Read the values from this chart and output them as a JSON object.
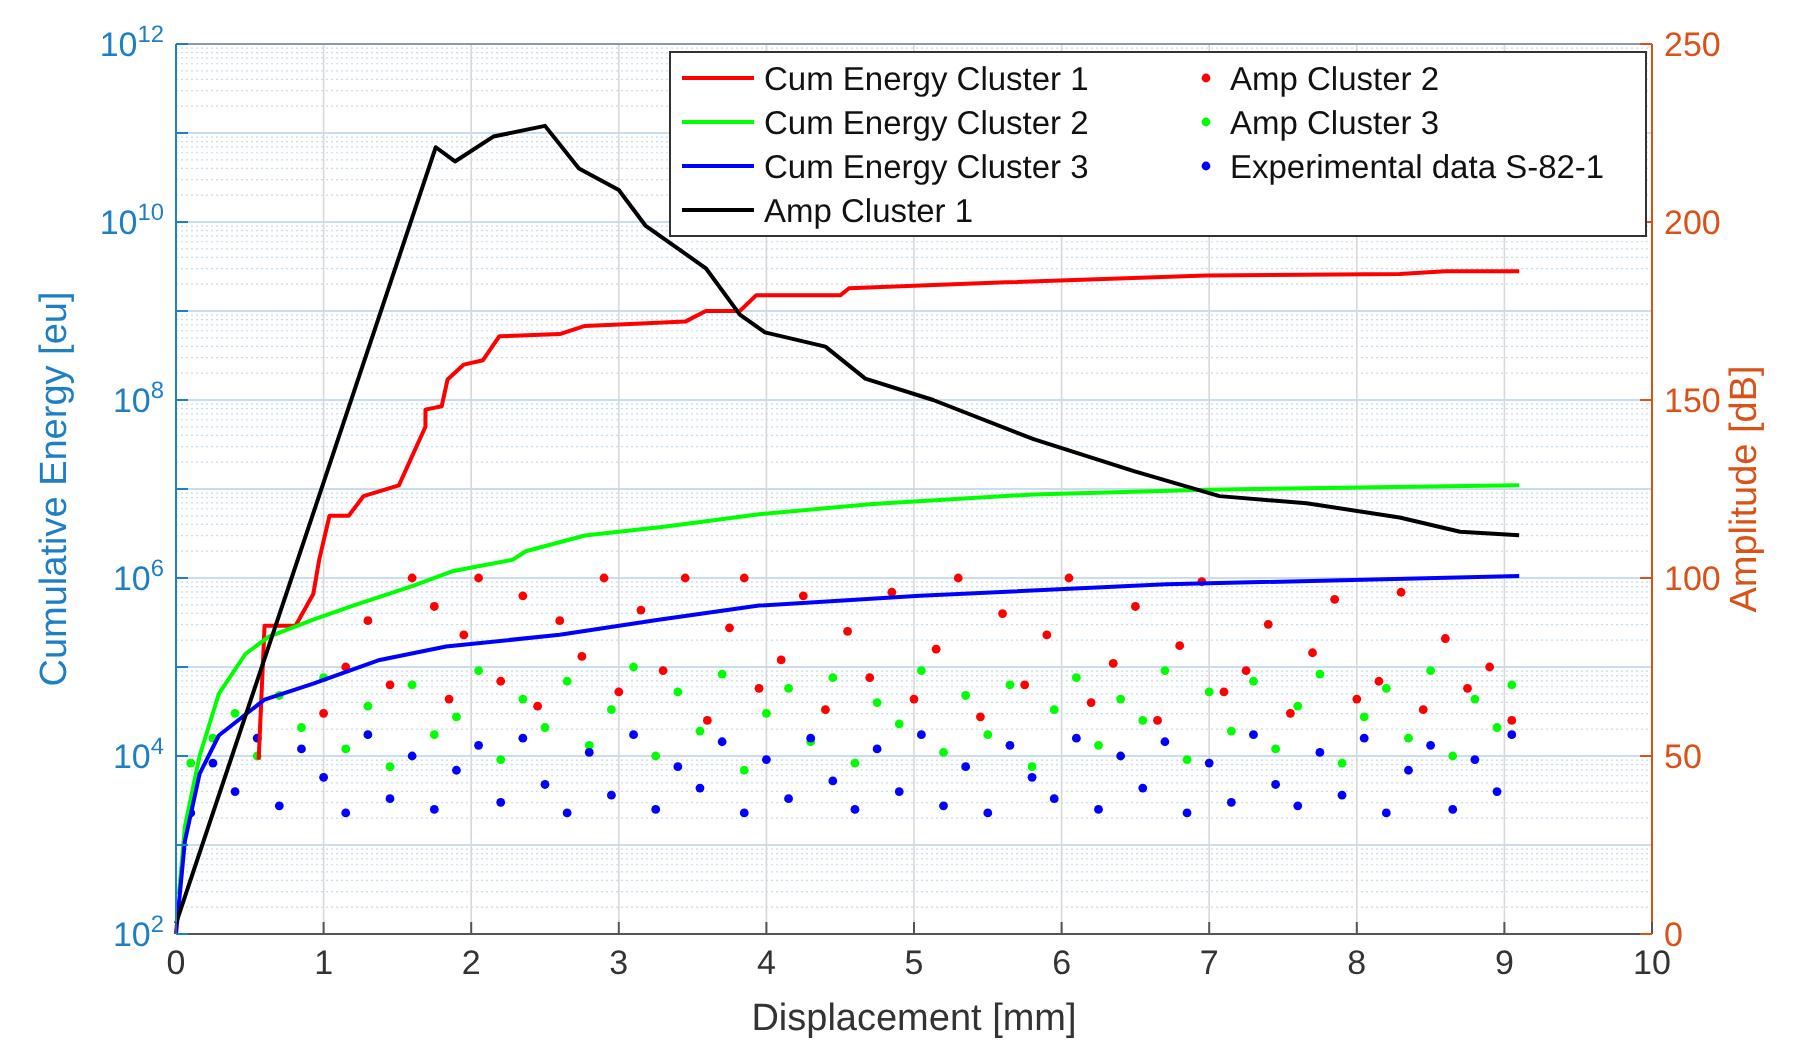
{
  "chart_data": {
    "type": "line",
    "xlabel": "Displacement [mm]",
    "ylabel": "Cumulative Energy [eu]",
    "y2label": "Amplitude [dB]",
    "xlim": [
      0,
      10
    ],
    "xticks": [
      0,
      1,
      2,
      3,
      4,
      5,
      6,
      7,
      8,
      9,
      10
    ],
    "ylim": [
      100,
      1000000000000
    ],
    "yticks": [
      {
        "value": 100,
        "label": "10$^{2}$"
      },
      {
        "value": 1000,
        "label": null
      },
      {
        "value": 10000,
        "label": "10$^{4}$"
      },
      {
        "value": 100000,
        "label": null
      },
      {
        "value": 1000000,
        "label": "10$^{6}$"
      },
      {
        "value": 10000000,
        "label": null
      },
      {
        "value": 100000000,
        "label": "10$^{8}$"
      },
      {
        "value": 1000000000,
        "label": null
      },
      {
        "value": 10000000000,
        "label": "10$^{10}$"
      },
      {
        "value": 100000000000,
        "label": null
      },
      {
        "value": 1000000000000,
        "label": "10$^{12}$"
      }
    ],
    "y2lim": [
      0,
      250
    ],
    "y2ticks": [
      0,
      50,
      100,
      150,
      200,
      250
    ],
    "log": "y",
    "grid": true,
    "legend": "top right",
    "series": [
      {
        "name": "Cum Energy Cluster 1",
        "color": "#ff0000",
        "x": [
          0.56,
          0.6,
          0.81,
          0.93,
          0.97,
          1.04,
          1.17,
          1.27,
          1.51,
          1.69,
          1.69,
          1.8,
          1.84,
          1.95,
          2.08,
          2.19,
          2.6,
          2.77,
          3.04,
          3.45,
          3.59,
          3.82,
          3.93,
          4.5,
          4.56,
          5.62,
          6.98,
          8.29,
          8.6,
          9.1
        ],
        "values": [
          9100,
          290000,
          290000,
          660000,
          1600000,
          5000000,
          5000000,
          8300000,
          11000000,
          50000000,
          78000000,
          85000000,
          170000000,
          250000000,
          280000000,
          520000000,
          550000000,
          680000000,
          710000000,
          760000000,
          1000000000,
          1000000000,
          1500000000,
          1500000000,
          1800000000,
          2100000000,
          2500000000,
          2600000000,
          2800000000,
          2800000000
        ]
      },
      {
        "name": "Cum Energy Cluster 2",
        "color": "#00ff00",
        "x": [
          0.02,
          0.06,
          0.16,
          0.29,
          0.47,
          0.63,
          0.93,
          1.2,
          1.6,
          1.88,
          2.28,
          2.37,
          2.77,
          3.32,
          3.95,
          4.72,
          5.81,
          6.98,
          9.1
        ],
        "values": [
          280,
          1600,
          10000,
          50000,
          140000,
          220000,
          340000,
          490000,
          810000,
          1200000,
          1600000,
          2000000,
          3000000,
          3800000,
          5200000,
          6800000,
          8700000,
          9800000,
          11000000
        ]
      },
      {
        "name": "Cum Energy Cluster 3",
        "color": "#0000ff",
        "x": [
          0,
          0.06,
          0.16,
          0.29,
          0.6,
          0.93,
          1.38,
          1.83,
          2.6,
          3.27,
          3.95,
          5.04,
          6.71,
          9.1
        ],
        "values": [
          100,
          1100,
          6300,
          17000,
          43000,
          65000,
          120000,
          170000,
          230000,
          340000,
          490000,
          630000,
          850000,
          1050000
        ]
      },
      {
        "name": "Amp Cluster 1",
        "axis": "y2",
        "color": "#000000",
        "x": [
          0,
          1.76,
          1.89,
          2.15,
          2.5,
          2.73,
          3.0,
          3.18,
          3.59,
          3.82,
          3.99,
          4.4,
          4.67,
          5.13,
          5.81,
          6.49,
          7.07,
          7.66,
          8.29,
          8.7,
          9.1
        ],
        "values": [
          3,
          221,
          217,
          224,
          227,
          215,
          209,
          199,
          187,
          174,
          169,
          165,
          156,
          150,
          139,
          130,
          123,
          121,
          117,
          113,
          112
        ]
      },
      {
        "name": "Amp Cluster 2",
        "type": "scatter",
        "axis": "y2",
        "color": "#ff0000",
        "x": [
          1.0,
          1.15,
          1.3,
          1.45,
          1.6,
          1.75,
          1.85,
          1.95,
          2.05,
          2.2,
          2.35,
          2.45,
          2.6,
          2.75,
          2.9,
          3.0,
          3.15,
          3.3,
          3.45,
          3.6,
          3.75,
          3.85,
          3.95,
          4.1,
          4.25,
          4.4,
          4.55,
          4.7,
          4.85,
          5.0,
          5.15,
          5.3,
          5.45,
          5.6,
          5.75,
          5.9,
          6.05,
          6.2,
          6.35,
          6.5,
          6.65,
          6.8,
          6.95,
          7.1,
          7.25,
          7.4,
          7.55,
          7.7,
          7.85,
          8.0,
          8.15,
          8.3,
          8.45,
          8.6,
          8.75,
          8.9,
          9.05
        ],
        "values": [
          62,
          75,
          88,
          70,
          100,
          92,
          66,
          84,
          100,
          71,
          95,
          64,
          88,
          78,
          100,
          68,
          91,
          74,
          100,
          60,
          86,
          100,
          69,
          77,
          95,
          63,
          85,
          72,
          96,
          66,
          80,
          100,
          61,
          90,
          70,
          84,
          100,
          65,
          76,
          92,
          60,
          81,
          99,
          68,
          74,
          87,
          62,
          79,
          94,
          66,
          71,
          96,
          63,
          83,
          69,
          75,
          60
        ]
      },
      {
        "name": "Amp Cluster 3",
        "type": "scatter",
        "axis": "y2",
        "color": "#00ff00",
        "x": [
          0.1,
          0.25,
          0.4,
          0.55,
          0.7,
          0.85,
          1.0,
          1.15,
          1.3,
          1.45,
          1.6,
          1.75,
          1.9,
          2.05,
          2.2,
          2.35,
          2.5,
          2.65,
          2.8,
          2.95,
          3.1,
          3.25,
          3.4,
          3.55,
          3.7,
          3.85,
          4.0,
          4.15,
          4.3,
          4.45,
          4.6,
          4.75,
          4.9,
          5.05,
          5.2,
          5.35,
          5.5,
          5.65,
          5.8,
          5.95,
          6.1,
          6.25,
          6.4,
          6.55,
          6.7,
          6.85,
          7.0,
          7.15,
          7.3,
          7.45,
          7.6,
          7.75,
          7.9,
          8.05,
          8.2,
          8.35,
          8.5,
          8.65,
          8.8,
          8.95,
          9.05
        ],
        "values": [
          48,
          55,
          62,
          50,
          67,
          58,
          72,
          52,
          64,
          47,
          70,
          56,
          61,
          74,
          49,
          66,
          58,
          71,
          53,
          63,
          75,
          50,
          68,
          57,
          73,
          46,
          62,
          69,
          54,
          72,
          48,
          65,
          59,
          74,
          51,
          67,
          56,
          70,
          47,
          63,
          72,
          53,
          66,
          60,
          74,
          49,
          68,
          57,
          71,
          52,
          64,
          73,
          48,
          61,
          69,
          55,
          74,
          50,
          66,
          58,
          70
        ]
      },
      {
        "name": "Experimental data S-82-1",
        "type": "scatter",
        "axis": "y2",
        "color": "#0000ff",
        "x": [
          0.1,
          0.25,
          0.4,
          0.55,
          0.7,
          0.85,
          1.0,
          1.15,
          1.3,
          1.45,
          1.6,
          1.75,
          1.9,
          2.05,
          2.2,
          2.35,
          2.5,
          2.65,
          2.8,
          2.95,
          3.1,
          3.25,
          3.4,
          3.55,
          3.7,
          3.85,
          4.0,
          4.15,
          4.3,
          4.45,
          4.6,
          4.75,
          4.9,
          5.05,
          5.2,
          5.35,
          5.5,
          5.65,
          5.8,
          5.95,
          6.1,
          6.25,
          6.4,
          6.55,
          6.7,
          6.85,
          7.0,
          7.15,
          7.3,
          7.45,
          7.6,
          7.75,
          7.9,
          8.05,
          8.2,
          8.35,
          8.5,
          8.65,
          8.8,
          8.95,
          9.05
        ],
        "values": [
          34,
          48,
          40,
          55,
          36,
          52,
          44,
          34,
          56,
          38,
          50,
          35,
          46,
          53,
          37,
          55,
          42,
          34,
          51,
          39,
          56,
          35,
          47,
          41,
          54,
          34,
          49,
          38,
          55,
          43,
          35,
          52,
          40,
          56,
          36,
          47,
          34,
          53,
          44,
          38,
          55,
          35,
          50,
          41,
          54,
          34,
          48,
          37,
          56,
          42,
          36,
          51,
          39,
          55,
          34,
          46,
          53,
          35,
          49,
          40,
          56
        ]
      }
    ]
  }
}
